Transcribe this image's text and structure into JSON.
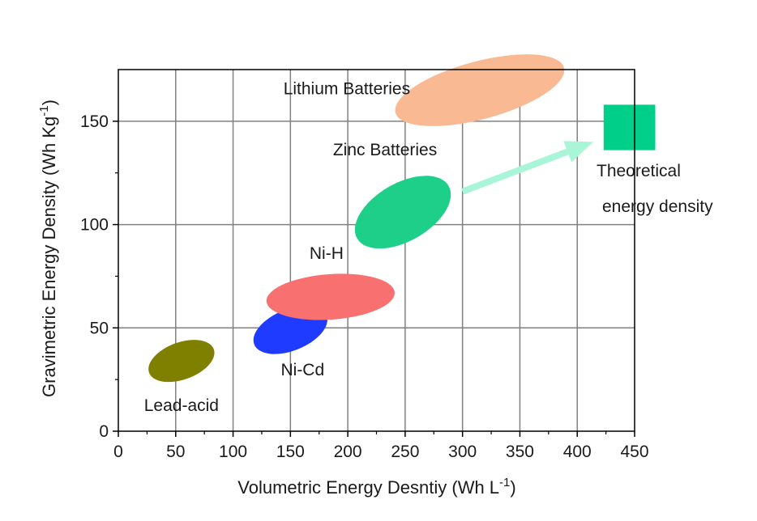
{
  "chart_data": {
    "type": "scatter",
    "title": "",
    "xlabel": "Volumetric Energy Desntiy (Wh L",
    "xlabel_sup": "-1",
    "xlabel_end": ")",
    "ylabel": "Gravimetric Energy Density (Wh Kg",
    "ylabel_sup": "-1",
    "ylabel_end": ")",
    "xlim": [
      0,
      450
    ],
    "ylim": [
      0,
      175
    ],
    "x_ticks": [
      0,
      50,
      100,
      150,
      200,
      250,
      300,
      350,
      400,
      450
    ],
    "y_ticks": [
      0,
      50,
      100,
      150
    ],
    "grid": true,
    "regions": [
      {
        "label": "Lead-acid",
        "cx": 55,
        "cy": 34,
        "rx": 30,
        "ry": 9,
        "angle": 20,
        "color": "#808000"
      },
      {
        "label": "Ni-Cd",
        "cx": 150,
        "cy": 49,
        "rx": 34,
        "ry": 10,
        "angle": 22,
        "color": "#1f3bff"
      },
      {
        "label": "Ni-H",
        "cx": 185,
        "cy": 65,
        "rx": 56,
        "ry": 11,
        "angle": 4,
        "color": "#f87070"
      },
      {
        "label": "Zinc Batteries",
        "cx": 248,
        "cy": 106,
        "rx": 46,
        "ry": 14,
        "angle": 30,
        "color": "#1ecf8a"
      },
      {
        "label": "Lithium Batteries",
        "cx": 315,
        "cy": 165,
        "rx": 76,
        "ry": 14,
        "angle": 15,
        "color": "#f9b992"
      }
    ],
    "theoretical": {
      "label_line1": "Theoretical",
      "label_line2": "energy density",
      "x_range": [
        423,
        468
      ],
      "y_range": [
        136,
        158
      ],
      "color": "#00cf8a"
    },
    "arrow": {
      "from": [
        300,
        116
      ],
      "to": [
        414,
        140
      ],
      "color": "#a8f5d8"
    }
  }
}
